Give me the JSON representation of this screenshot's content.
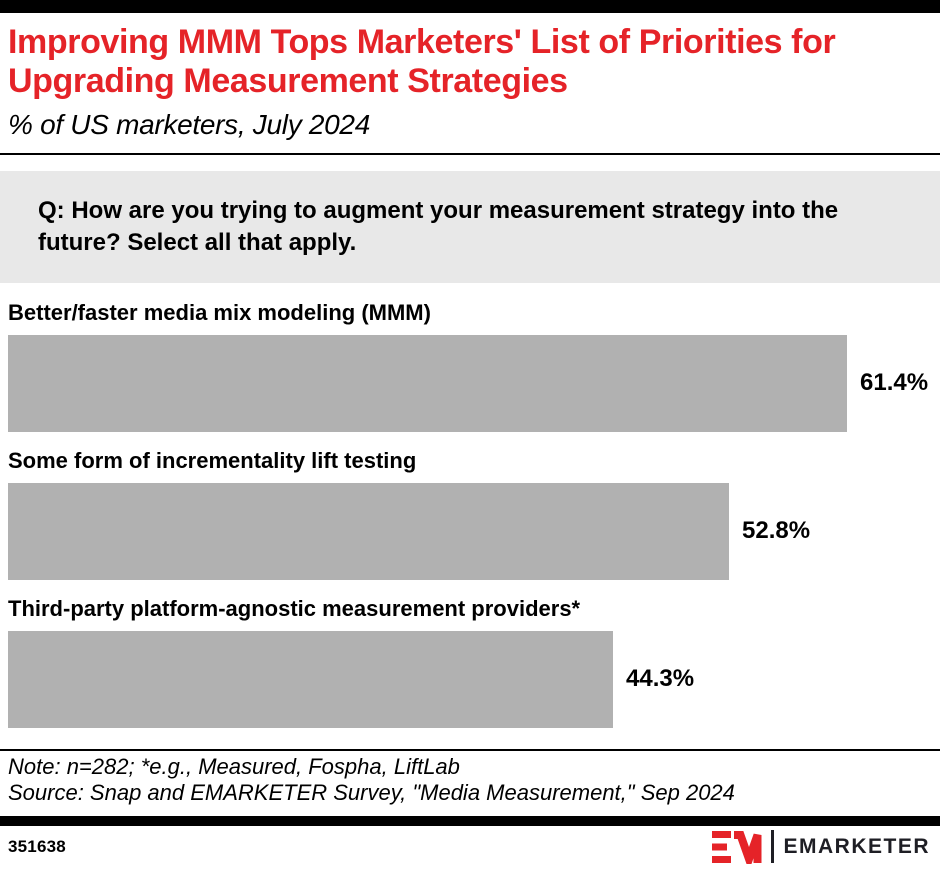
{
  "header": {
    "title": "Improving MMM Tops Marketers' List of Priorities for Upgrading Measurement Strategies",
    "subtitle": "% of US marketers, July 2024"
  },
  "question": "Q: How are you trying to augment your measurement strategy into the future? Select all that apply.",
  "chart_data": {
    "type": "bar",
    "orientation": "horizontal",
    "title": "Improving MMM Tops Marketers' List of Priorities for Upgrading Measurement Strategies",
    "subtitle": "% of US marketers, July 2024",
    "categories": [
      "Better/faster media mix modeling (MMM)",
      "Some form of incrementality lift testing",
      "Third-party platform-agnostic measurement providers*"
    ],
    "values": [
      61.4,
      52.8,
      44.3
    ],
    "value_labels": [
      "61.4%",
      "52.8%",
      "44.3%"
    ],
    "unit": "%",
    "value_axis_shown": false,
    "grid": false,
    "legend": false
  },
  "footnote": {
    "note": "Note: n=282; *e.g., Measured, Fospha, LiftLab",
    "source": "Source: Snap and EMARKETER Survey, \"Media Measurement,\" Sep 2024"
  },
  "footer": {
    "chart_id": "351638",
    "brand": "EMARKETER"
  },
  "colors": {
    "accent_red": "#E52328",
    "bar_gray": "#B1B1B1",
    "question_bg": "#E8E8E8",
    "text_black": "#000000",
    "wordmark_dark": "#1E1E24"
  }
}
